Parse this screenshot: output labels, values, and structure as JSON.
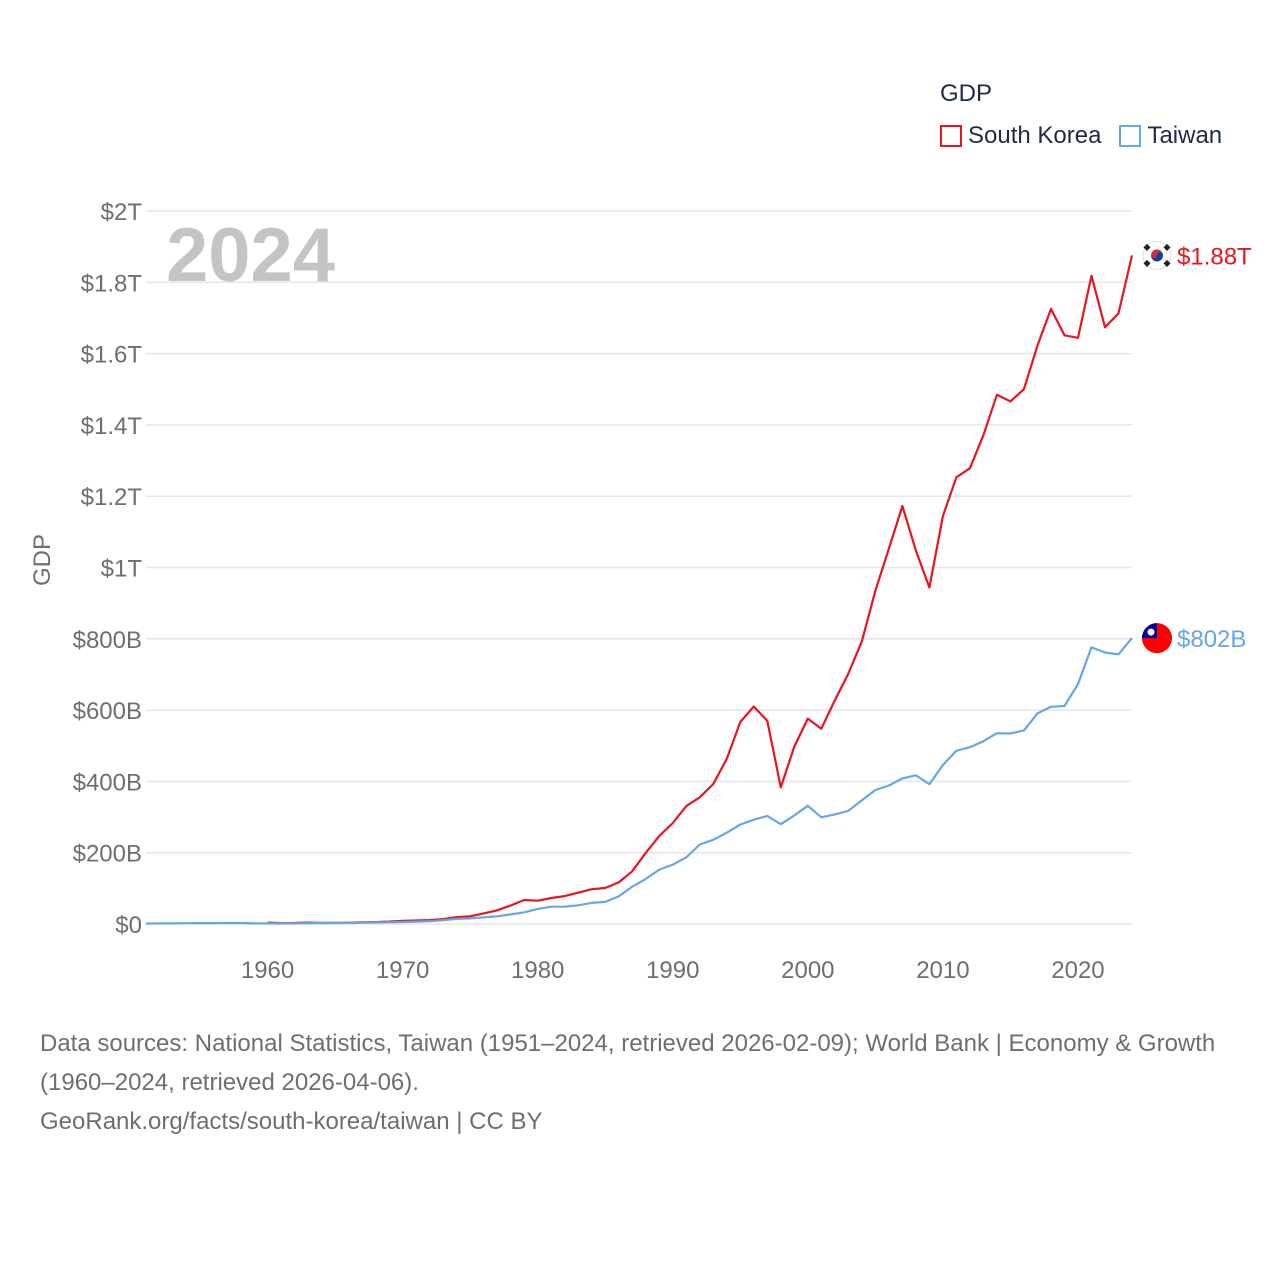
{
  "legend": {
    "title": "GDP"
  },
  "source": {
    "line1": "Data sources: National Statistics, Taiwan (1951–2024, retrieved 2026-02-09); World Bank | Economy & Growth (1960–2024, retrieved 2026-04-06).",
    "line2": "GeoRank.org/facts/south-korea/taiwan | CC BY"
  },
  "colors": {
    "south_korea": "#e8141e",
    "taiwan": "#64a6e6",
    "grid": "#e6e6e6",
    "axis_text": "#6e6e6e",
    "year_watermark": "#c4c4c4"
  },
  "chart_data": {
    "type": "line",
    "title": "GDP",
    "year_label": "2024",
    "ylabel": "GDP",
    "xlabel": "",
    "xlim": [
      1951,
      2024
    ],
    "ylim": [
      0,
      2000
    ],
    "value_unit": "billion USD",
    "x_ticks": [
      1960,
      1970,
      1980,
      1990,
      2000,
      2010,
      2020
    ],
    "y_ticks": [
      {
        "value": 0,
        "label": "$0"
      },
      {
        "value": 200,
        "label": "$200B"
      },
      {
        "value": 400,
        "label": "$400B"
      },
      {
        "value": 600,
        "label": "$600B"
      },
      {
        "value": 800,
        "label": "$800B"
      },
      {
        "value": 1000,
        "label": "$1T"
      },
      {
        "value": 1200,
        "label": "$1.2T"
      },
      {
        "value": 1400,
        "label": "$1.4T"
      },
      {
        "value": 1600,
        "label": "$1.6T"
      },
      {
        "value": 1800,
        "label": "$1.8T"
      },
      {
        "value": 2000,
        "label": "$2T"
      }
    ],
    "series": [
      {
        "name": "South Korea",
        "color": "#e8141e",
        "end_label": "$1.88T",
        "flag_icon": "south-korea-flag-icon",
        "x": [
          1960,
          1961,
          1962,
          1963,
          1964,
          1965,
          1966,
          1967,
          1968,
          1969,
          1970,
          1971,
          1972,
          1973,
          1974,
          1975,
          1976,
          1977,
          1978,
          1979,
          1980,
          1981,
          1982,
          1983,
          1984,
          1985,
          1986,
          1987,
          1988,
          1989,
          1990,
          1991,
          1992,
          1993,
          1994,
          1995,
          1996,
          1997,
          1998,
          1999,
          2000,
          2001,
          2002,
          2003,
          2004,
          2005,
          2006,
          2007,
          2008,
          2009,
          2010,
          2011,
          2012,
          2013,
          2014,
          2015,
          2016,
          2017,
          2018,
          2019,
          2020,
          2021,
          2022,
          2023,
          2024
        ],
        "values": [
          4,
          2.4,
          2.8,
          3.9,
          3.5,
          3.1,
          3.7,
          4.4,
          5.3,
          6.6,
          9,
          9.9,
          10.8,
          13.8,
          19.4,
          21.7,
          29.8,
          38.4,
          52,
          67.2,
          65.4,
          72.9,
          78.3,
          87.8,
          97.5,
          101,
          116.8,
          147.9,
          199.6,
          247,
          283.4,
          330.6,
          355.5,
          392.7,
          463.6,
          566.6,
          610,
          569.8,
          383.3,
          497.5,
          576.2,
          547.7,
          627.2,
          702.7,
          793.2,
          934.9,
          1053.2,
          1172.6,
          1047.3,
          943.9,
          1144.1,
          1253.2,
          1278.4,
          1370.8,
          1484.3,
          1465.8,
          1500.1,
          1623.1,
          1725.4,
          1651.4,
          1644.3,
          1818.4,
          1673.9,
          1712.8,
          1875.4
        ]
      },
      {
        "name": "Taiwan",
        "color": "#64a6e6",
        "end_label": "$802B",
        "flag_icon": "taiwan-flag-icon",
        "x": [
          1951,
          1952,
          1953,
          1954,
          1955,
          1956,
          1957,
          1958,
          1959,
          1960,
          1961,
          1962,
          1963,
          1964,
          1965,
          1966,
          1967,
          1968,
          1969,
          1970,
          1971,
          1972,
          1973,
          1974,
          1975,
          1976,
          1977,
          1978,
          1979,
          1980,
          1981,
          1982,
          1983,
          1984,
          1985,
          1986,
          1987,
          1988,
          1989,
          1990,
          1991,
          1992,
          1993,
          1994,
          1995,
          1996,
          1997,
          1998,
          1999,
          2000,
          2001,
          2002,
          2003,
          2004,
          2005,
          2006,
          2007,
          2008,
          2009,
          2010,
          2011,
          2012,
          2013,
          2014,
          2015,
          2016,
          2017,
          2018,
          2019,
          2020,
          2021,
          2022,
          2023,
          2024
        ],
        "values": [
          1.2,
          1.7,
          1.9,
          2.2,
          2.4,
          2.4,
          2.7,
          2.9,
          1.8,
          1.7,
          1.8,
          2,
          2.2,
          2.6,
          2.9,
          3.2,
          3.6,
          4.2,
          4.9,
          5.7,
          6.6,
          7.9,
          10.7,
          14.4,
          15.6,
          18.7,
          21.7,
          26.8,
          32.9,
          42.3,
          48.6,
          48.6,
          52.4,
          59.1,
          62,
          77.4,
          104.7,
          126.6,
          152.6,
          166.6,
          187.1,
          222.9,
          236.3,
          256.2,
          279,
          292.5,
          303.3,
          280,
          304.7,
          331.5,
          299.3,
          307.4,
          317.4,
          346.9,
          375.8,
          388.6,
          408.3,
          417,
          392.1,
          446.1,
          485.7,
          495.8,
          512.9,
          535.3,
          534.5,
          543,
          590.7,
          609.2,
          611.4,
          673.2,
          775.8,
          761.7,
          756.6,
          802
        ]
      }
    ]
  }
}
